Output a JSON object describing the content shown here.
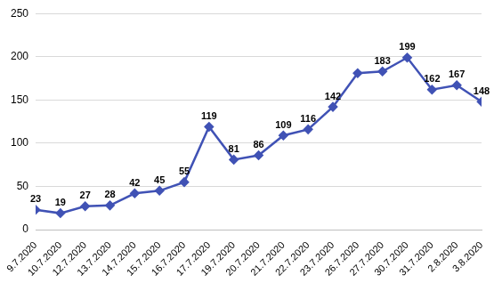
{
  "chart_data": {
    "type": "line",
    "categories": [
      "9.7.2020",
      "10.7.2020",
      "12.7.2020",
      "13.7.2020",
      "14.7.2020",
      "15.7.2020",
      "16.7.2020",
      "17.7.2020",
      "19.7.2020",
      "20.7.2020",
      "21.7.2020",
      "22.7.2020",
      "23.7.2020",
      "26.7.2020",
      "27.7.2020",
      "30.7.2020",
      "31.7.2020",
      "2.8.2020",
      "3.8.2020"
    ],
    "values": [
      23,
      19,
      27,
      28,
      42,
      45,
      55,
      119,
      81,
      86,
      109,
      116,
      142,
      181,
      183,
      199,
      162,
      167,
      148
    ],
    "value_labels": [
      "23",
      "19",
      "27",
      "28",
      "42",
      "45",
      "55",
      "119",
      "81",
      "86",
      "109",
      "116",
      "142",
      null,
      "183",
      "199",
      "162",
      "167",
      "148"
    ],
    "color": "#4052b5",
    "marker": "diamond",
    "line_style": "solid",
    "ylim": [
      0,
      250
    ],
    "yticks": [
      0,
      50,
      100,
      150,
      200,
      250
    ],
    "grid": true,
    "data_labels": true
  }
}
